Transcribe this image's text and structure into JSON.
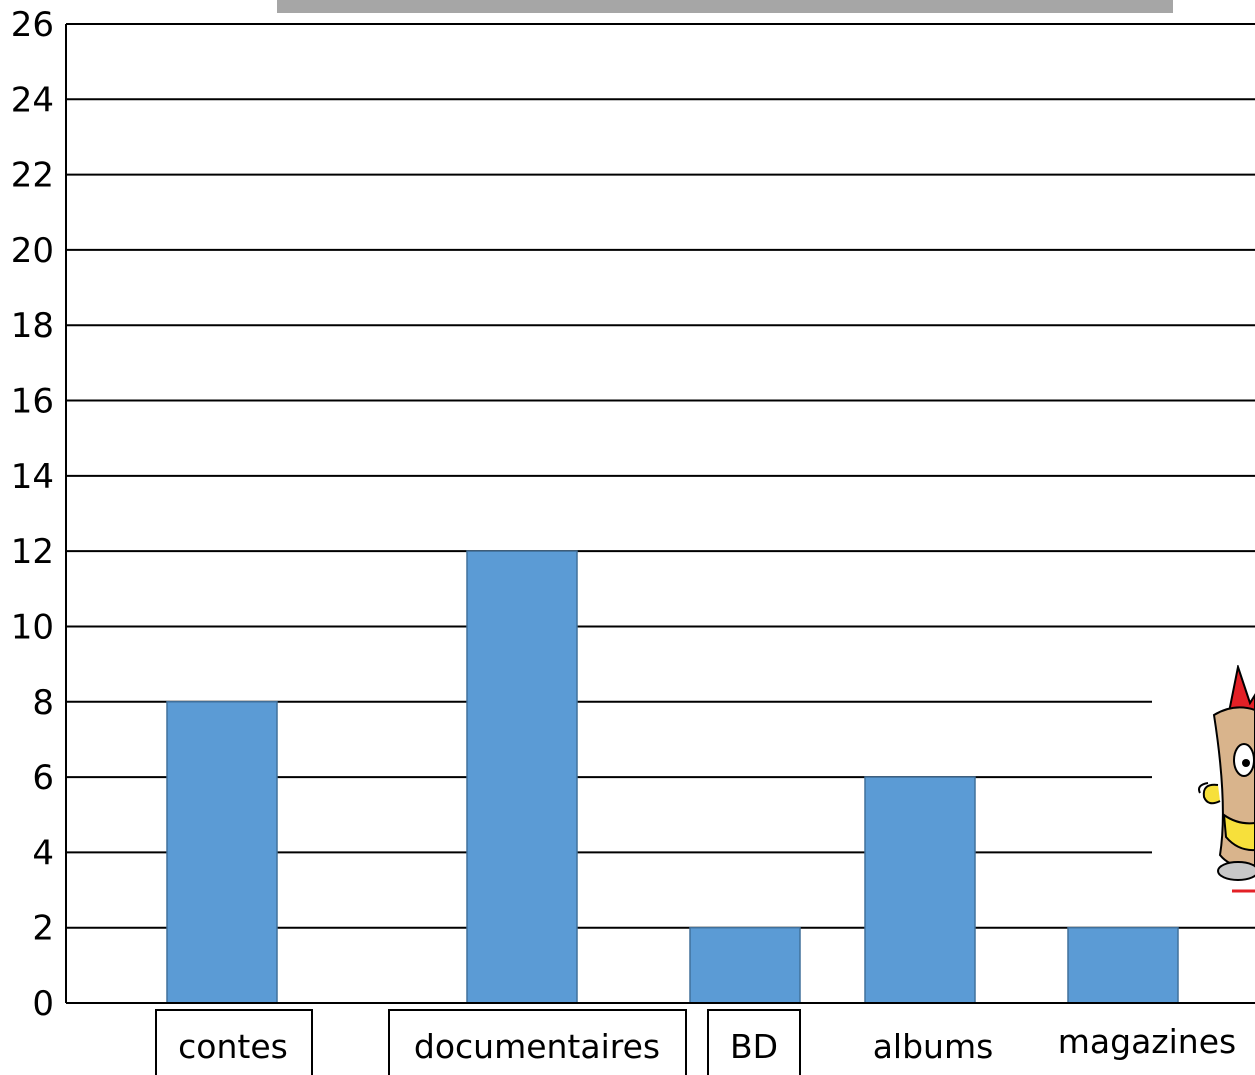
{
  "chart_data": {
    "type": "bar",
    "title": "",
    "xlabel": "",
    "ylabel": "",
    "ylim": [
      0,
      26
    ],
    "yticks": [
      0,
      2,
      4,
      6,
      8,
      10,
      12,
      14,
      16,
      18,
      20,
      22,
      24,
      26
    ],
    "grid": true,
    "categories": [
      "contes",
      "documentaires",
      "BD",
      "albums",
      "magazines"
    ],
    "values": [
      8,
      12,
      2,
      6,
      2
    ],
    "bar_color": "#5b9bd5",
    "boxed_categories": [
      "contes",
      "documentaires",
      "BD"
    ]
  },
  "decorations": {
    "title_banner_color": "#a6a6a6",
    "mascot_icon": "cartoon-book-mascot-icon"
  }
}
